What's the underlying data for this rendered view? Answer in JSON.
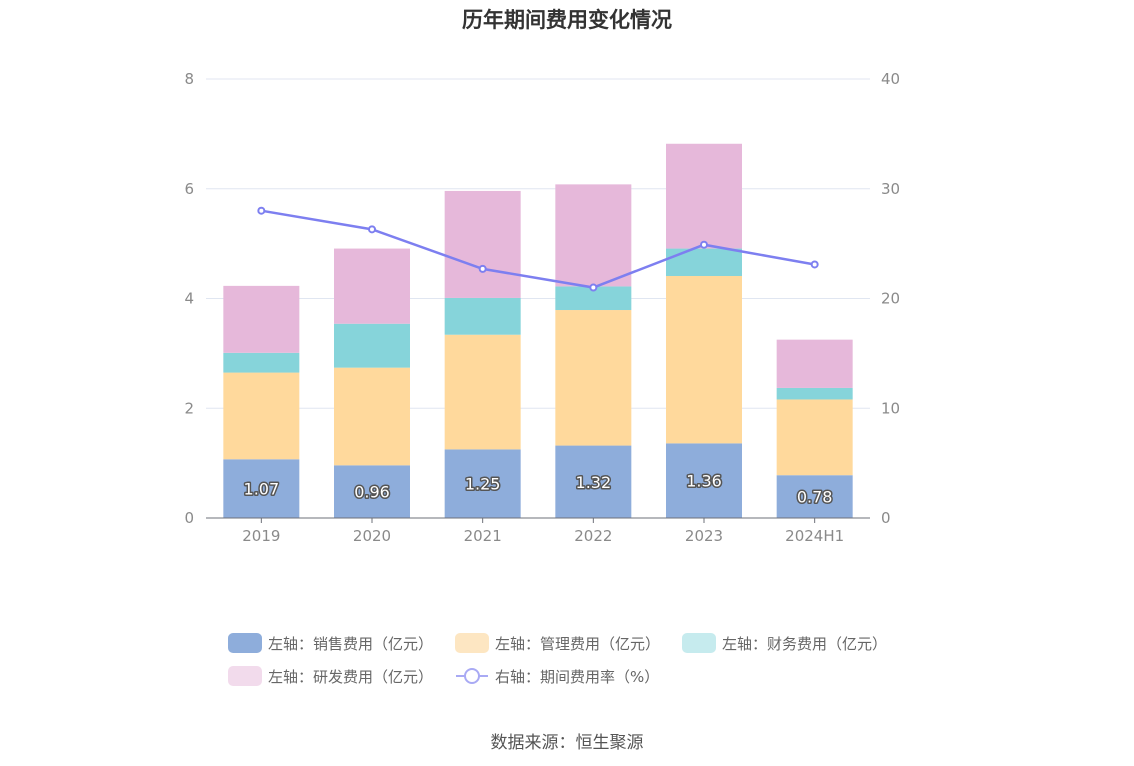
{
  "chart_data": {
    "type": "bar",
    "title": "历年期间费用变化情况",
    "categories": [
      "2019",
      "2020",
      "2021",
      "2022",
      "2023",
      "2024H1"
    ],
    "left_axis": {
      "min": 0,
      "max": 8,
      "ticks": [
        "0",
        "2",
        "4",
        "6",
        "8"
      ]
    },
    "right_axis": {
      "min": 0,
      "max": 40,
      "ticks": [
        "0",
        "10",
        "20",
        "30",
        "40"
      ]
    },
    "stacked_series": [
      {
        "name": "左轴：销售费用（亿元）",
        "color": "#8eaddb",
        "values": [
          1.07,
          0.96,
          1.25,
          1.32,
          1.36,
          0.78
        ],
        "labels": [
          "1.07",
          "0.96",
          "1.25",
          "1.32",
          "1.36",
          "0.78"
        ]
      },
      {
        "name": "左轴：管理费用（亿元）",
        "color": "#ffd99c",
        "values": [
          1.58,
          1.78,
          2.09,
          2.47,
          3.05,
          1.38
        ]
      },
      {
        "name": "左轴：财务费用（亿元）",
        "color": "#86d4da",
        "values": [
          0.36,
          0.8,
          0.67,
          0.43,
          0.5,
          0.21
        ]
      },
      {
        "name": "左轴：研发费用（亿元）",
        "color": "#e6b8da",
        "values": [
          1.22,
          1.37,
          1.95,
          1.86,
          1.91,
          0.88
        ]
      }
    ],
    "line_series": {
      "name": "右轴：期间费用率（%）",
      "color": "#7d7ff0",
      "values": [
        28.0,
        26.3,
        22.7,
        21.0,
        24.9,
        23.1
      ]
    },
    "grid": true,
    "legend_position": "bottom"
  },
  "legend": {
    "row1": [
      {
        "label": "左轴：销售费用（亿元）",
        "color": "#8eaddb"
      },
      {
        "label": "左轴：管理费用（亿元）",
        "color": "#fde6c2"
      },
      {
        "label": "左轴：财务费用（亿元）",
        "color": "#c6ebee"
      }
    ],
    "row2": [
      {
        "label": "左轴：研发费用（亿元）",
        "color": "#f2dbec"
      },
      {
        "label": "右轴：期间费用率（%）",
        "color": "#a9aaf4"
      }
    ]
  },
  "source": "数据来源：恒生聚源"
}
